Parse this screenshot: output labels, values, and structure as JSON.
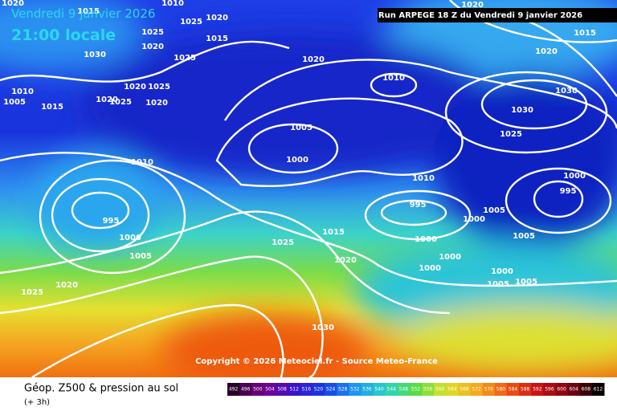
{
  "header": {
    "date": "Vendredi 9 janvier 2026",
    "time": "21:00 locale",
    "run": "Run ARPEGE 18 Z du Vendredi 9 janvier 2026"
  },
  "isobar_labels": [
    1020,
    1015,
    1010,
    1025,
    1020,
    1025,
    1015,
    1020,
    1030,
    1025,
    1020,
    1010,
    1005,
    1010,
    1015,
    1020,
    1025,
    1020,
    1025,
    1020,
    1005,
    1000,
    1010,
    995,
    1000,
    1005,
    1025,
    1015,
    1020,
    1020,
    1025,
    1010,
    995,
    1000,
    1005,
    1000,
    1000,
    1000,
    1005,
    1000,
    1005,
    1005,
    1030,
    1030,
    1025,
    1000,
    995,
    1020,
    1015,
    1020,
    1030
  ],
  "copyright": "Copyright © 2026 Meteociel.fr - Source Meteo-France",
  "footer": {
    "title": "Géop. Z500 & pression au sol",
    "lead": "(+ 3h)"
  },
  "colorbar": {
    "labels": [
      492,
      496,
      500,
      504,
      508,
      512,
      516,
      520,
      524,
      528,
      532,
      536,
      540,
      544,
      548,
      552,
      556,
      560,
      564,
      568,
      572,
      576,
      580,
      584,
      588,
      592,
      596,
      600,
      604,
      608,
      612
    ]
  }
}
